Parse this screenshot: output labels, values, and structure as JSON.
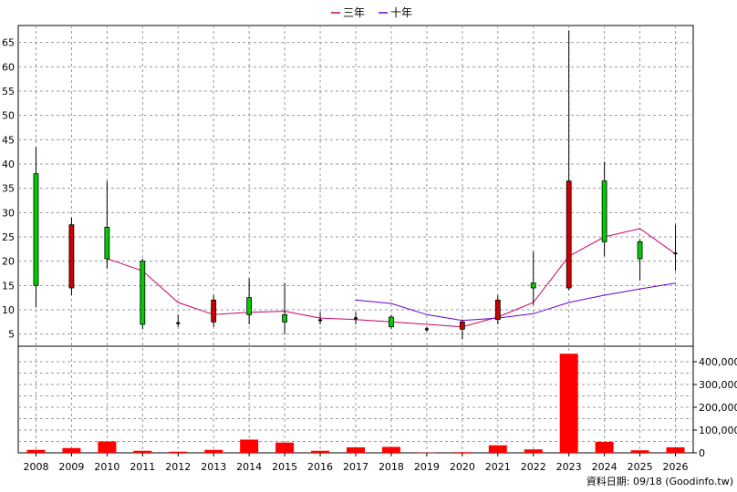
{
  "chart_data": {
    "type": "candlestick",
    "legend": [
      {
        "name": "三年",
        "color": "#cc0066"
      },
      {
        "name": "十年",
        "color": "#6600cc"
      }
    ],
    "years": [
      "2008",
      "2009",
      "2010",
      "2011",
      "2012",
      "2013",
      "2014",
      "2015",
      "2016",
      "2017",
      "2018",
      "2019",
      "2020",
      "2021",
      "2022",
      "2023",
      "2024",
      "2025",
      "2026"
    ],
    "price_axis": {
      "min": 2.5,
      "max": 68.5,
      "ticks": [
        5,
        10,
        15,
        20,
        25,
        30,
        35,
        40,
        45,
        50,
        55,
        60,
        65
      ]
    },
    "volume_axis": {
      "min": 0,
      "max": 440000,
      "ticks": [
        0,
        100000,
        200000,
        300000,
        400000
      ],
      "tick_labels": [
        "0",
        "100,000",
        "200,000",
        "300,000",
        "400,000"
      ]
    },
    "candles": [
      {
        "year": "2008",
        "open": 15,
        "high": 43.5,
        "low": 10.5,
        "close": 38,
        "color": "green"
      },
      {
        "year": "2009",
        "open": 27.5,
        "high": 29,
        "low": 13,
        "close": 14.5,
        "color": "red"
      },
      {
        "year": "2010",
        "open": 20.5,
        "high": 36.5,
        "low": 18.5,
        "close": 27,
        "color": "green"
      },
      {
        "year": "2011",
        "open": 7,
        "high": 20.5,
        "low": 6,
        "close": 20,
        "color": "green"
      },
      {
        "year": "2012",
        "open": 7.5,
        "high": 9,
        "low": 6.5,
        "close": 7,
        "color": "flat"
      },
      {
        "year": "2013",
        "open": 12,
        "high": 13,
        "low": 6.5,
        "close": 7.5,
        "color": "red"
      },
      {
        "year": "2014",
        "open": 9,
        "high": 16.5,
        "low": 7,
        "close": 12.5,
        "color": "green"
      },
      {
        "year": "2015",
        "open": 7.5,
        "high": 15.5,
        "low": 5,
        "close": 9,
        "color": "green"
      },
      {
        "year": "2016",
        "open": 8,
        "high": 9.5,
        "low": 7,
        "close": 7.7,
        "color": "flat"
      },
      {
        "year": "2017",
        "open": 8,
        "high": 9.5,
        "low": 7,
        "close": 8.5,
        "color": "flat"
      },
      {
        "year": "2018",
        "open": 6.5,
        "high": 9,
        "low": 6,
        "close": 8.5,
        "color": "green"
      },
      {
        "year": "2019",
        "open": 6,
        "high": 6.5,
        "low": 5.5,
        "close": 6,
        "color": "flat"
      },
      {
        "year": "2020",
        "open": 7.5,
        "high": 8,
        "low": 4,
        "close": 6,
        "color": "red"
      },
      {
        "year": "2021",
        "open": 12,
        "high": 13,
        "low": 7,
        "close": 8,
        "color": "red"
      },
      {
        "year": "2022",
        "open": 14.5,
        "high": 22,
        "low": 11,
        "close": 15.5,
        "color": "green"
      },
      {
        "year": "2023",
        "open": 36.5,
        "high": 67.5,
        "low": 14,
        "close": 14.5,
        "color": "red"
      },
      {
        "year": "2024",
        "open": 24,
        "high": 40.5,
        "low": 21,
        "close": 36.5,
        "color": "green"
      },
      {
        "year": "2025",
        "open": 20.5,
        "high": 24.5,
        "low": 16,
        "close": 24,
        "color": "green"
      },
      {
        "year": "2026",
        "open": 21.5,
        "high": 27.5,
        "low": 18,
        "close": 21.7,
        "color": "flat"
      }
    ],
    "series": [
      {
        "name": "三年",
        "color": "#cc0066",
        "values": [
          null,
          null,
          20.5,
          18,
          11.5,
          9,
          9.5,
          9.7,
          8.3,
          8,
          7.5,
          7,
          6.5,
          8.5,
          11.5,
          21,
          25,
          26.7,
          21.5
        ]
      },
      {
        "name": "十年",
        "color": "#6600cc",
        "values": [
          null,
          null,
          null,
          null,
          null,
          null,
          null,
          null,
          null,
          12,
          11.3,
          9,
          7.8,
          8.3,
          9.2,
          11.5,
          13,
          14.3,
          15.5
        ]
      }
    ],
    "volumes": [
      13000,
      21000,
      50000,
      9000,
      5000,
      13000,
      58000,
      45000,
      9000,
      24000,
      26000,
      1000,
      3000,
      33000,
      15000,
      435000,
      48000,
      11000,
      24000
    ],
    "note": "資料日期: 09/18  (Goodinfo.tw)"
  }
}
